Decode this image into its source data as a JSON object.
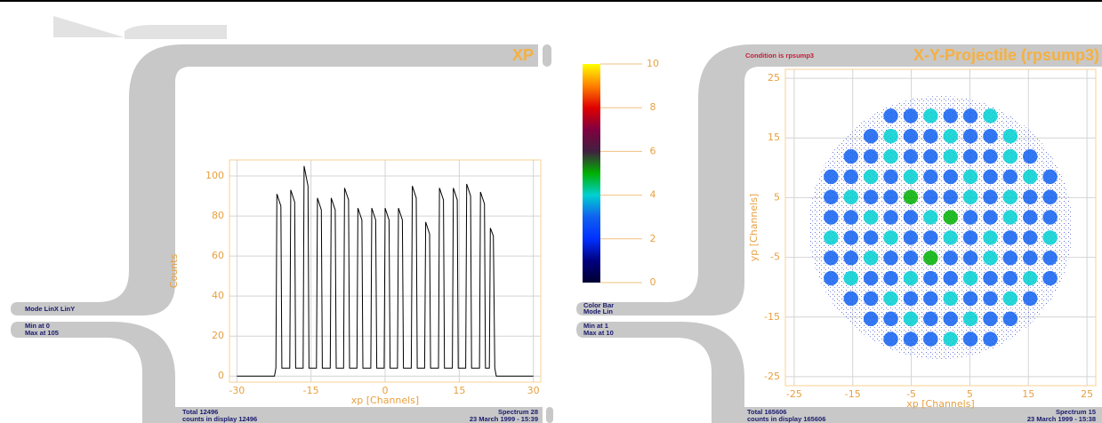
{
  "chart_data": [
    {
      "type": "line",
      "title": "XP",
      "xlabel": "xp [Channels]",
      "ylabel": "Counts",
      "color": "#000000",
      "x": [
        -30,
        -22.4,
        -22.1,
        -21.9,
        -21.1,
        -20.9,
        -19.3,
        -19.1,
        -18.3,
        -18.1,
        -16.6,
        -16.4,
        -15.6,
        -15.4,
        -13.9,
        -13.7,
        -12.9,
        -12.7,
        -11.1,
        -10.9,
        -10.1,
        -9.9,
        -8.4,
        -8.2,
        -7.4,
        -7.2,
        -5.7,
        -5.5,
        -4.7,
        -4.5,
        -2.9,
        -2.7,
        -1.9,
        -1.7,
        -0.2,
        0,
        0.8,
        1,
        2.5,
        2.7,
        3.5,
        3.7,
        5.3,
        5.5,
        6.3,
        6.5,
        8,
        8.2,
        9,
        9.2,
        10.8,
        11,
        11.8,
        12,
        13.6,
        13.8,
        14.6,
        14.8,
        16.3,
        16.5,
        17.3,
        17.5,
        19.1,
        19.3,
        20.1,
        20.3,
        21.1,
        21.3,
        21.9,
        22.2,
        22.5,
        30
      ],
      "values": [
        0,
        0,
        4,
        91,
        85,
        4,
        4,
        93,
        87,
        4,
        4,
        105,
        95,
        4,
        4,
        89,
        83,
        4,
        4,
        89,
        83,
        4,
        4,
        94,
        88,
        4,
        4,
        84,
        78,
        4,
        4,
        84,
        78,
        4,
        4,
        84,
        78,
        4,
        4,
        84,
        78,
        4,
        4,
        95,
        89,
        4,
        4,
        77,
        71,
        4,
        4,
        94,
        88,
        4,
        4,
        94,
        88,
        4,
        4,
        96,
        90,
        4,
        4,
        92,
        86,
        4,
        4,
        74,
        70,
        4,
        0,
        0
      ],
      "xlim": [
        -31.5,
        31.5
      ],
      "xticks": [
        -30,
        -15,
        0,
        15,
        30
      ],
      "ylim": [
        -3,
        108
      ],
      "yticks": [
        0,
        20,
        40,
        60,
        80,
        100
      ],
      "grid": true,
      "annotations": [
        "Mode LinX LinY",
        "Min at 0",
        "Max at 105",
        "Total 12496",
        "counts in display 12496",
        "Spectrum 28",
        "23 March 1999 - 15:39"
      ]
    },
    {
      "type": "heatmap",
      "title": "X-Y-Projectile (rpsump3)",
      "xlabel": "xp [Channels]",
      "ylabel": "yp [Channels]",
      "x": [
        -18.7,
        -15.3,
        -11.9,
        -8.5,
        -5.1,
        -1.7,
        1.7,
        5.1,
        8.5,
        11.9,
        15.3,
        18.7
      ],
      "y": [
        18.7,
        15.3,
        11.9,
        8.5,
        5.1,
        1.7,
        -1.7,
        -5.1,
        -8.5,
        -11.9,
        -15.3,
        -18.7
      ],
      "values": [
        [
          null,
          null,
          null,
          3,
          3,
          4,
          3,
          3,
          4,
          null,
          null,
          null
        ],
        [
          null,
          null,
          3,
          4,
          3,
          3,
          4,
          3,
          3,
          4,
          null,
          null
        ],
        [
          null,
          3,
          3,
          4,
          3,
          3,
          4,
          3,
          3,
          4,
          3,
          null
        ],
        [
          3,
          3,
          4,
          3,
          4,
          3,
          3,
          4,
          3,
          3,
          4,
          3
        ],
        [
          3,
          4,
          3,
          3,
          5,
          3,
          3,
          4,
          3,
          4,
          3,
          3
        ],
        [
          3,
          3,
          4,
          3,
          3,
          4,
          5,
          3,
          3,
          4,
          3,
          3
        ],
        [
          4,
          3,
          3,
          4,
          3,
          3,
          4,
          3,
          4,
          3,
          3,
          4
        ],
        [
          3,
          3,
          4,
          3,
          3,
          5,
          3,
          3,
          4,
          3,
          3,
          3
        ],
        [
          3,
          4,
          3,
          3,
          4,
          3,
          3,
          4,
          3,
          3,
          4,
          3
        ],
        [
          null,
          3,
          3,
          4,
          3,
          3,
          4,
          3,
          3,
          4,
          3,
          null
        ],
        [
          null,
          null,
          3,
          3,
          4,
          3,
          3,
          4,
          3,
          3,
          null,
          null
        ],
        [
          null,
          null,
          null,
          3,
          3,
          3,
          4,
          3,
          3,
          null,
          null,
          null
        ]
      ],
      "xlim": [
        -26.5,
        26.5
      ],
      "xticks": [
        -25,
        -15,
        -5,
        5,
        15,
        25
      ],
      "ylim": [
        -26.5,
        26.5
      ],
      "yticks": [
        -25,
        -15,
        -5,
        5,
        15,
        25
      ],
      "grid": true,
      "colorbar": {
        "lim": [
          0,
          10
        ],
        "ticks": [
          0,
          2,
          4,
          6,
          8,
          10
        ],
        "colors": [
          "#000030",
          "#000080",
          "#0030ff",
          "#1060f0",
          "#00d0d0",
          "#00b000",
          "#402040",
          "#800040",
          "#e00000",
          "#ff8000",
          "#ffff00"
        ]
      },
      "annotations": [
        "Condition is rpsump3",
        "Color Bar",
        "Mode Lin",
        "Min at 1",
        "Max at 10",
        "Total 165606",
        "counts in display 165606",
        "Spectrum 15",
        "23 March 1999 - 15:38"
      ]
    }
  ]
}
